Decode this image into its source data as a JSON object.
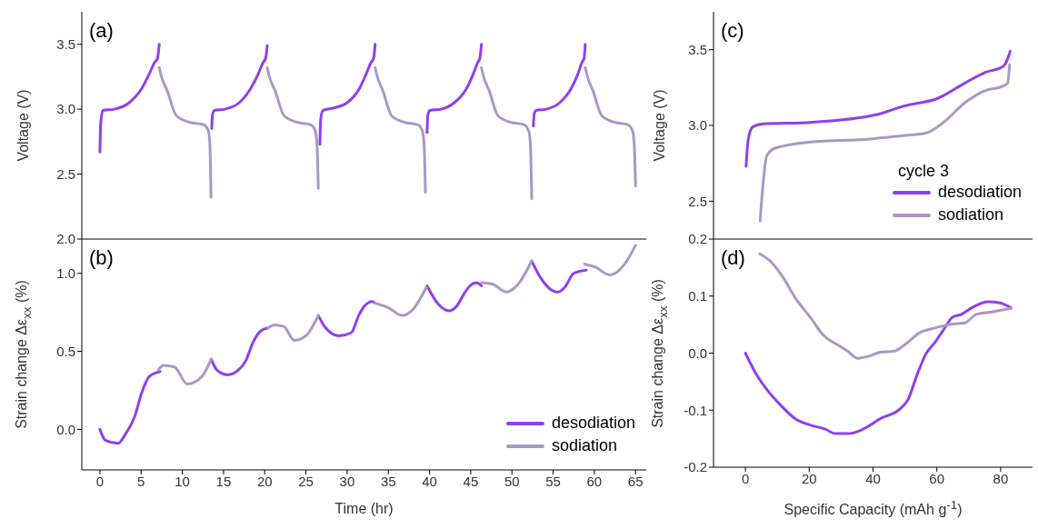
{
  "chart_data": [
    {
      "type": "line",
      "ylabel": "Voltage (V)",
      "annotations": [
        "(a)"
      ],
      "xlim": [
        -2.2,
        66.3
      ],
      "ylim": [
        2.0,
        3.75
      ],
      "xticks": [
        0,
        5,
        10,
        15,
        20,
        25,
        30,
        35,
        40,
        45,
        50,
        55,
        60,
        65
      ],
      "yticks": [
        {
          "value": 2,
          "label": "2.0"
        },
        2.5,
        {
          "value": 3,
          "label": "3.0"
        },
        3.5
      ],
      "tick_labels": "y",
      "series": [
        {
          "color": "#8f3ff0",
          "x": [
            0,
            0.09,
            0.35,
            1.77,
            3.54,
            5.08,
            5.97,
            6.63,
            6.98,
            7.2,
            10,
            13.57,
            13.65,
            13.9,
            15.2,
            16.9,
            18.3,
            19.2,
            19.8,
            20.1,
            20.3,
            23,
            26.7,
            26.79,
            27.05,
            28.4,
            30.0,
            31.5,
            32.3,
            32.9,
            33.2,
            33.4,
            36,
            39.7,
            39.79,
            40.05,
            41.4,
            43.0,
            44.5,
            45.3,
            45.85,
            46.1,
            46.3,
            49,
            52.6,
            52.69,
            52.95,
            54.2,
            55.8,
            57.2,
            58.0,
            58.5,
            58.75,
            58.9
          ],
          "values": [
            2.67,
            2.89,
            2.99,
            3.0,
            3.05,
            3.16,
            3.27,
            3.36,
            3.39,
            3.5,
            null,
            2.85,
            2.95,
            2.99,
            3.0,
            3.05,
            3.16,
            3.27,
            3.36,
            3.39,
            3.49,
            null,
            2.73,
            2.92,
            2.99,
            3.01,
            3.05,
            3.16,
            3.27,
            3.36,
            3.39,
            3.5,
            null,
            2.82,
            2.95,
            2.99,
            3.0,
            3.05,
            3.16,
            3.27,
            3.36,
            3.39,
            3.5,
            null,
            2.87,
            2.96,
            2.99,
            3.0,
            3.05,
            3.16,
            3.27,
            3.36,
            3.39,
            3.5
          ]
        },
        {
          "color": "#a998c8",
          "x": [
            7.2,
            7.42,
            8.18,
            9.28,
            10.83,
            12.6,
            13.17,
            13.35,
            13.48,
            17,
            20.3,
            20.52,
            21.27,
            22.35,
            23.9,
            25.6,
            26.15,
            26.35,
            26.5,
            30,
            33.4,
            33.62,
            34.35,
            35.4,
            36.9,
            38.6,
            39.15,
            39.35,
            39.5,
            43,
            46.3,
            46.52,
            47.25,
            48.3,
            49.8,
            51.5,
            52.05,
            52.25,
            52.4,
            56,
            58.9,
            59.12,
            59.85,
            60.9,
            62.4,
            64.1,
            64.65,
            64.85,
            65.0
          ],
          "values": [
            3.32,
            3.26,
            3.14,
            2.95,
            2.9,
            2.88,
            2.83,
            2.72,
            2.32,
            null,
            3.32,
            3.26,
            3.14,
            2.95,
            2.9,
            2.88,
            2.83,
            2.72,
            2.39,
            null,
            3.32,
            3.26,
            3.14,
            2.95,
            2.9,
            2.88,
            2.83,
            2.72,
            2.36,
            null,
            3.32,
            3.26,
            3.14,
            2.95,
            2.9,
            2.88,
            2.83,
            2.72,
            2.31,
            null,
            3.32,
            3.26,
            3.14,
            2.95,
            2.9,
            2.88,
            2.83,
            2.72,
            2.41
          ]
        }
      ]
    },
    {
      "type": "line",
      "xlabel": "Time (hr)",
      "ylabel": "Strain change Δε$_{xx}$ (%)",
      "annotations": [
        "(b)"
      ],
      "legend": "bottom right",
      "xlim": [
        -2.2,
        66.3
      ],
      "ylim": [
        -0.26,
        1.22
      ],
      "xticks": [
        0,
        5,
        10,
        15,
        20,
        25,
        30,
        35,
        40,
        45,
        50,
        55,
        60,
        65
      ],
      "yticks": [
        {
          "value": 0,
          "label": "0.0"
        },
        0.5,
        {
          "value": 1,
          "label": "1.0"
        }
      ],
      "series": [
        {
          "name": "desodiation",
          "color": "#8f3ff0",
          "x": [
            0,
            0.66,
            2.2,
            3.1,
            4.2,
            5.1,
            6.0,
            7.3,
            10,
            13.5,
            14.2,
            15.5,
            16.8,
            17.7,
            18.6,
            19.5,
            20.4,
            23,
            26.5,
            27.4,
            29.0,
            30.5,
            31.4,
            32.1,
            33.0,
            33.4,
            36,
            39.7,
            41.1,
            42.4,
            43.3,
            44.2,
            44.9,
            45.7,
            46.3,
            49,
            52.4,
            53.5,
            55.5,
            56.4,
            57.5,
            59.0
          ],
          "values": [
            0.0,
            -0.07,
            -0.09,
            -0.03,
            0.08,
            0.24,
            0.34,
            0.37,
            null,
            0.45,
            0.38,
            0.35,
            0.38,
            0.44,
            0.56,
            0.63,
            0.65,
            null,
            0.73,
            0.65,
            0.6,
            0.62,
            0.73,
            0.79,
            0.82,
            0.81,
            null,
            0.92,
            0.8,
            0.76,
            0.79,
            0.87,
            0.92,
            0.94,
            0.92,
            null,
            1.08,
            0.97,
            0.88,
            0.91,
            1.0,
            1.02
          ]
        },
        {
          "name": "sodiation",
          "color": "#a998c8",
          "x": [
            7.07,
            7.7,
            9.06,
            10.6,
            12.4,
            13.5,
            17,
            20.4,
            21.2,
            22.3,
            23.6,
            25.0,
            26.5,
            30,
            33.4,
            35.0,
            36.7,
            38.0,
            39.6,
            43,
            46.3,
            47.7,
            49.3,
            50.9,
            52.4,
            56,
            58.8,
            60.1,
            61.9,
            63.7,
            65.0
          ],
          "values": [
            0.38,
            0.41,
            0.4,
            0.29,
            0.34,
            0.45,
            null,
            0.65,
            0.67,
            0.66,
            0.57,
            0.6,
            0.73,
            null,
            0.81,
            0.78,
            0.73,
            0.77,
            0.91,
            null,
            0.94,
            0.93,
            0.88,
            0.94,
            1.08,
            null,
            1.06,
            1.04,
            0.99,
            1.06,
            1.18
          ]
        }
      ]
    },
    {
      "type": "line",
      "ylabel": "Voltage (V)",
      "annotations": [
        "(c)"
      ],
      "legend": "bottom right",
      "legend_title": "cycle 3",
      "xlim": [
        -10,
        90
      ],
      "ylim": [
        2.25,
        3.75
      ],
      "xticks": [
        0,
        20,
        40,
        60,
        80
      ],
      "yticks": [
        2.5,
        {
          "value": 3,
          "label": "3.0"
        },
        3.5
      ],
      "tick_labels": "y",
      "series": [
        {
          "name": "desodiation",
          "color": "#8f3ff0",
          "x": [
            0.2,
            0.9,
            2.3,
            5.6,
            20.4,
            40.9,
            50,
            60.4,
            68.8,
            75.2,
            80.8,
            82.2,
            83.0
          ],
          "values": [
            2.73,
            2.91,
            2.99,
            3.01,
            3.02,
            3.07,
            3.13,
            3.18,
            3.28,
            3.35,
            3.39,
            3.44,
            3.49
          ]
        },
        {
          "name": "sodiation",
          "color": "#a998c8",
          "x": [
            4.6,
            5.6,
            6.7,
            9.3,
            20.4,
            39.0,
            48.2,
            56.6,
            62.1,
            68.8,
            75.2,
            80.8,
            82.2,
            82.8
          ],
          "values": [
            2.37,
            2.63,
            2.8,
            2.85,
            2.89,
            2.91,
            2.93,
            2.95,
            3.02,
            3.15,
            3.23,
            3.26,
            3.28,
            3.4
          ]
        }
      ]
    },
    {
      "type": "line",
      "xlabel": "Specific Capacity (mAh g$^{-1}$)",
      "ylabel": "Strain change Δε$_{xx}$ (%)",
      "annotations": [
        "(d)"
      ],
      "xlim": [
        -10,
        90
      ],
      "ylim": [
        -0.2,
        0.2
      ],
      "xticks": [
        0,
        20,
        40,
        60,
        80
      ],
      "yticks": [
        -0.2,
        -0.1,
        {
          "value": 0,
          "label": "0.0"
        },
        0.1,
        0.2
      ],
      "series": [
        {
          "color": "#8f3ff0",
          "x": [
            0,
            3.5,
            7.3,
            11,
            15.6,
            20.3,
            24.9,
            28.2,
            32.4,
            37,
            42.6,
            48.2,
            51,
            53.8,
            56.6,
            59.3,
            62.1,
            64.9,
            67.7,
            71.4,
            76.1,
            79.8,
            83.3
          ],
          "values": [
            0.0,
            -0.038,
            -0.068,
            -0.091,
            -0.115,
            -0.126,
            -0.133,
            -0.141,
            -0.141,
            -0.133,
            -0.114,
            -0.099,
            -0.081,
            -0.038,
            -0.001,
            0.018,
            0.041,
            0.063,
            0.068,
            0.081,
            0.09,
            0.088,
            0.079
          ]
        },
        {
          "color": "#a998c8",
          "x": [
            4.5,
            8.2,
            11.9,
            15.6,
            20.3,
            24.5,
            28.7,
            31.9,
            35.2,
            38.9,
            42.6,
            46.3,
            50,
            54.7,
            59.3,
            64.9,
            68.7,
            72.4,
            78,
            83.3
          ],
          "values": [
            0.174,
            0.159,
            0.132,
            0.097,
            0.063,
            0.031,
            0.015,
            0.004,
            -0.009,
            -0.005,
            0.002,
            0.003,
            0.015,
            0.036,
            0.044,
            0.051,
            0.053,
            0.068,
            0.073,
            0.079
          ]
        }
      ]
    }
  ]
}
